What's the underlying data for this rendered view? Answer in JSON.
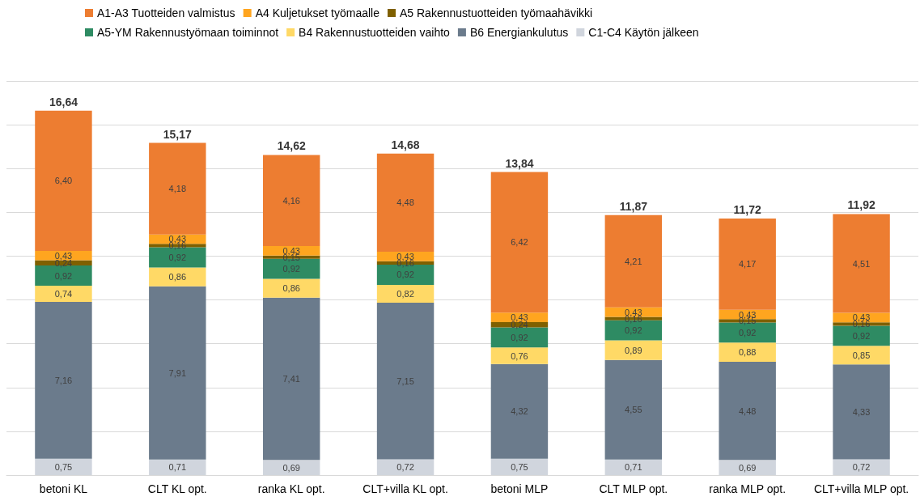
{
  "chart_data": {
    "type": "bar",
    "stacked": true,
    "categories": [
      "betoni KL",
      "CLT KL opt.",
      "ranka KL opt.",
      "CLT+villa KL opt.",
      "betoni MLP",
      "CLT MLP opt.",
      "ranka MLP opt.",
      "CLT+villa MLP opt."
    ],
    "series": [
      {
        "name": "C1-C4 Käytön jälkeen",
        "color": "#d0d5dd",
        "values": [
          0.75,
          0.71,
          0.69,
          0.72,
          0.75,
          0.71,
          0.69,
          0.72
        ],
        "value_labels": [
          "0,75",
          "0,71",
          "0,69",
          "0,72",
          "0,75",
          "0,71",
          "0,69",
          "0,72"
        ]
      },
      {
        "name": "B6 Energiankulutus",
        "color": "#6b7b8c",
        "values": [
          7.16,
          7.91,
          7.41,
          7.15,
          4.32,
          4.55,
          4.48,
          4.33
        ],
        "value_labels": [
          "7,16",
          "7,91",
          "7,41",
          "7,15",
          "4,32",
          "4,55",
          "4,48",
          "4,33"
        ]
      },
      {
        "name": "B4 Rakennustuotteiden vaihto",
        "color": "#ffd966",
        "values": [
          0.74,
          0.86,
          0.86,
          0.82,
          0.76,
          0.89,
          0.88,
          0.85
        ],
        "value_labels": [
          "0,74",
          "0,86",
          "0,86",
          "0,82",
          "0,76",
          "0,89",
          "0,88",
          "0,85"
        ]
      },
      {
        "name": "A5-YM Rakennustyömaan toiminnot",
        "color": "#2e8b63",
        "values": [
          0.92,
          0.92,
          0.92,
          0.92,
          0.92,
          0.92,
          0.92,
          0.92
        ],
        "value_labels": [
          "0,92",
          "0,92",
          "0,92",
          "0,92",
          "0,92",
          "0,92",
          "0,92",
          "0,92"
        ]
      },
      {
        "name": "A5 Rakennustuotteiden työmaahävikki",
        "color": "#7f6000",
        "values": [
          0.24,
          0.16,
          0.15,
          0.16,
          0.24,
          0.16,
          0.15,
          0.16
        ],
        "value_labels": [
          "0,24",
          "0,16",
          "0,15",
          "0,16",
          "0,24",
          "0,16",
          "0,15",
          "0,16"
        ]
      },
      {
        "name": "A4 Kuljetukset työmaalle",
        "color": "#ffa51f",
        "values": [
          0.43,
          0.43,
          0.43,
          0.43,
          0.43,
          0.43,
          0.43,
          0.43
        ],
        "value_labels": [
          "0,43",
          "0,43",
          "0,43",
          "0,43",
          "0,43",
          "0,43",
          "0,43",
          "0,43"
        ]
      },
      {
        "name": "A1-A3 Tuotteiden valmistus",
        "color": "#ed7d31",
        "values": [
          6.4,
          4.18,
          4.16,
          4.48,
          6.42,
          4.21,
          4.17,
          4.51
        ],
        "value_labels": [
          "6,40",
          "4,18",
          "4,16",
          "4,48",
          "6,42",
          "4,21",
          "4,17",
          "4,51"
        ]
      }
    ],
    "totals": [
      "16,64",
      "15,17",
      "14,62",
      "14,68",
      "13,84",
      "11,87",
      "11,72",
      "11,92"
    ],
    "ylim": [
      0,
      18
    ],
    "yticks": [
      0,
      2,
      4,
      6,
      8,
      10,
      12,
      14,
      16,
      18
    ],
    "tick_labels": "x",
    "grid": "y",
    "legend": "top left"
  }
}
